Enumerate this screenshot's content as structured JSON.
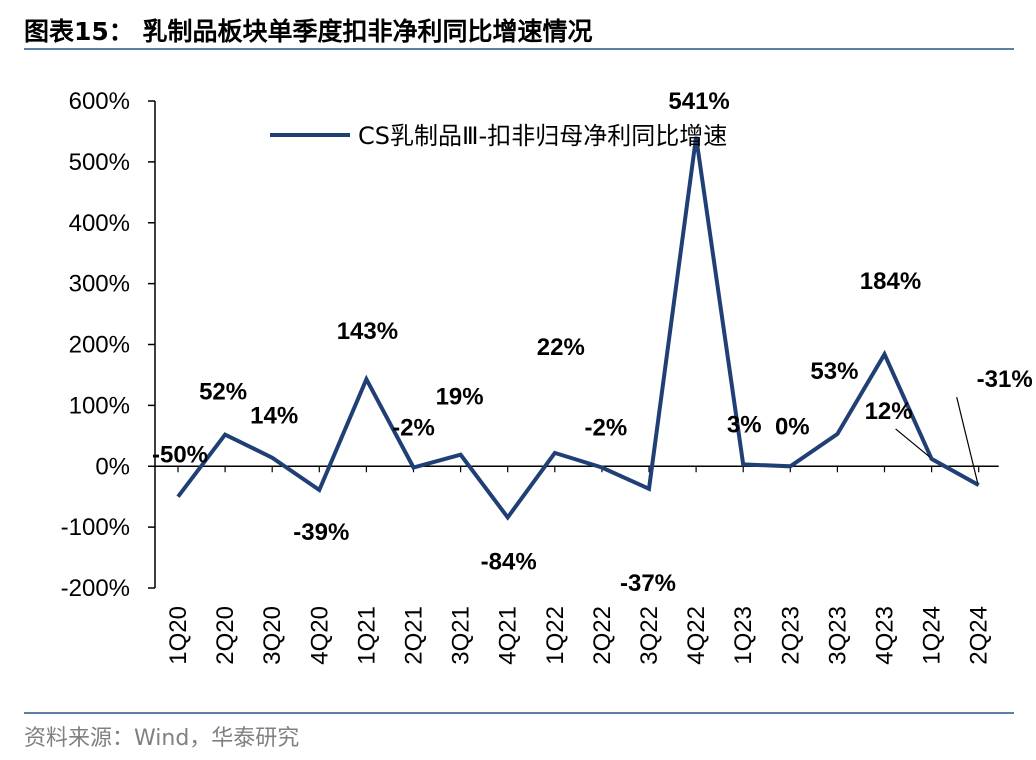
{
  "header": {
    "title": "图表15：  乳制品板块单季度扣非净利同比增速情况"
  },
  "footer": {
    "source": "资料来源：Wind，华泰研究"
  },
  "colors": {
    "series": "#1f3f75",
    "rule": "#5b7fa6",
    "axis": "#000000"
  },
  "chart_data": {
    "type": "line",
    "title": "乳制品板块单季度扣非净利同比增速情况",
    "xlabel": "",
    "ylabel": "",
    "ylim": [
      -200,
      600
    ],
    "y_ticks": [
      600,
      500,
      400,
      300,
      200,
      100,
      0,
      -100,
      -200
    ],
    "y_tick_labels": [
      "600%",
      "500%",
      "400%",
      "300%",
      "200%",
      "100%",
      "0%",
      "-100%",
      "-200%"
    ],
    "categories": [
      "1Q20",
      "2Q20",
      "3Q20",
      "4Q20",
      "1Q21",
      "2Q21",
      "3Q21",
      "4Q21",
      "1Q22",
      "2Q22",
      "3Q22",
      "4Q22",
      "1Q23",
      "2Q23",
      "3Q23",
      "4Q23",
      "1Q24",
      "2Q24"
    ],
    "legend_position": "top-center",
    "series": [
      {
        "name": "CS乳制品Ⅲ-扣非归母净利同比增速",
        "values": [
          -50,
          52,
          14,
          -39,
          143,
          -2,
          19,
          -84,
          22,
          -2,
          -37,
          541,
          3,
          0,
          53,
          184,
          12,
          -31
        ],
        "labels": [
          "-50%",
          "52%",
          "14%",
          "-39%",
          "143%",
          "-2%",
          "19%",
          "-84%",
          "22%",
          "-2%",
          "-37%",
          "541%",
          "3%",
          "0%",
          "53%",
          "184%",
          "12%",
          "-31%"
        ]
      }
    ]
  }
}
